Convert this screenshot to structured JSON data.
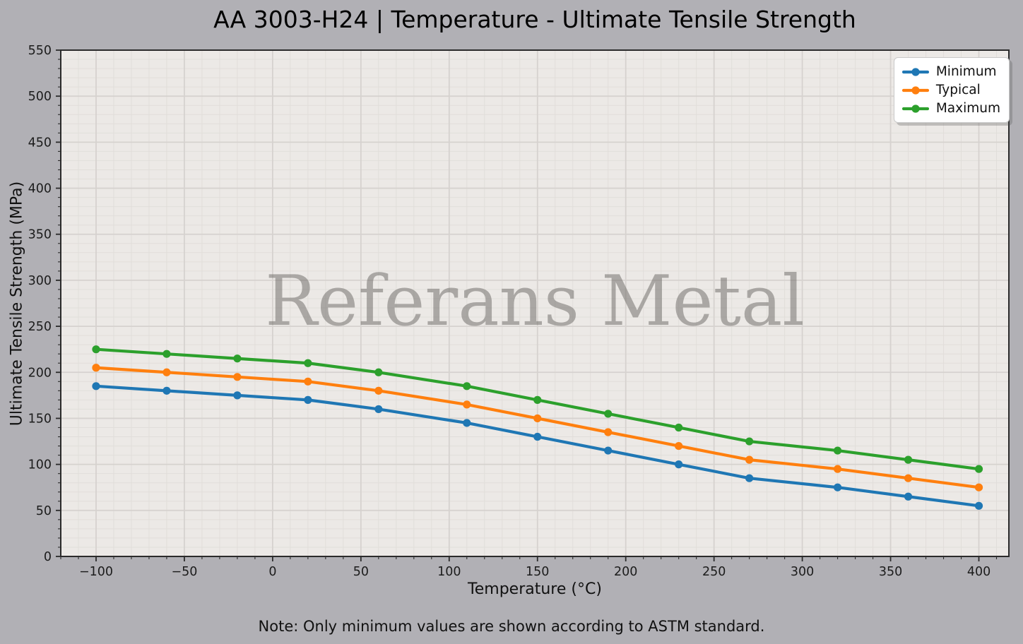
{
  "watermark": "Referans Metal",
  "note": "Note: Only minimum values are shown according to ASTM standard.",
  "chart_data": {
    "type": "line",
    "title": "AA 3003-H24 | Temperature - Ultimate Tensile Strength",
    "xlabel": "Temperature (°C)",
    "ylabel": "Ultimate Tensile Strength (MPa)",
    "x": [
      -100,
      -60,
      -20,
      20,
      60,
      110,
      150,
      190,
      230,
      270,
      320,
      360,
      400
    ],
    "series": [
      {
        "name": "Minimum",
        "color": "#1f77b4",
        "values": [
          185,
          180,
          175,
          170,
          160,
          145,
          130,
          115,
          100,
          85,
          75,
          65,
          55
        ]
      },
      {
        "name": "Typical",
        "color": "#ff7f0e",
        "values": [
          205,
          200,
          195,
          190,
          180,
          165,
          150,
          135,
          120,
          105,
          95,
          85,
          75
        ]
      },
      {
        "name": "Maximum",
        "color": "#2ca02c",
        "values": [
          225,
          220,
          215,
          210,
          200,
          185,
          170,
          155,
          140,
          125,
          115,
          105,
          95
        ]
      }
    ],
    "xlim": [
      -120,
      417
    ],
    "ylim": [
      0,
      550
    ],
    "xticks": [
      -100,
      -50,
      0,
      50,
      100,
      150,
      200,
      250,
      300,
      350,
      400
    ],
    "xtick_labels": [
      "−100",
      "−50",
      "0",
      "50",
      "100",
      "150",
      "200",
      "250",
      "300",
      "350",
      "400"
    ],
    "yticks": [
      0,
      50,
      100,
      150,
      200,
      250,
      300,
      350,
      400,
      450,
      500,
      550
    ],
    "ytick_labels": [
      "0",
      "50",
      "100",
      "150",
      "200",
      "250",
      "300",
      "350",
      "400",
      "450",
      "500",
      "550"
    ],
    "minor_step": 10,
    "grid": true,
    "legend_position": "upper-right",
    "colors": {
      "figure_bg": "#b1b0b5",
      "plot_bg": "#ece9e6",
      "grid_major": "#d6d2cf",
      "grid_minor": "#e1deda",
      "spine": "#2b2b2b",
      "tick_label": "#1c1c1c"
    }
  }
}
